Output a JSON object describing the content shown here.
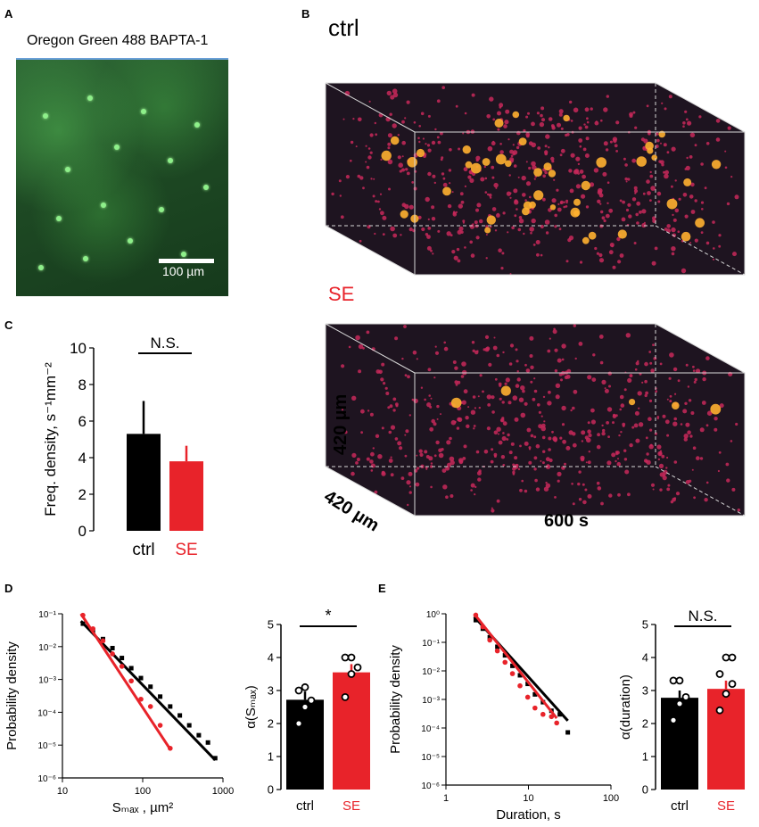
{
  "panel_labels": {
    "a": "A",
    "b": "B",
    "c": "C",
    "d": "D",
    "e": "E"
  },
  "panel_a": {
    "title": "Oregon Green 488 BAPTA-1",
    "scale_label": "100 µm"
  },
  "panel_b": {
    "ctrl_label": "ctrl",
    "se_label": "SE",
    "axis_y": "420 µm",
    "axis_depth": "420 µm",
    "axis_time": "600 s"
  },
  "colors": {
    "ctrl": "#000000",
    "se": "#e8232a",
    "dot": "#c8285a",
    "hot": "#ffb030",
    "cube_bg": "#1e1420",
    "micro": "#2a6a33"
  },
  "chart_data": [
    {
      "id": "C",
      "type": "bar",
      "categories": [
        "ctrl",
        "SE"
      ],
      "values": [
        5.3,
        3.8
      ],
      "errors": [
        1.8,
        0.85
      ],
      "ylabel": "Freq. density, s⁻¹mm⁻²",
      "ylim": [
        0,
        10
      ],
      "yticks": [
        0,
        2,
        4,
        6,
        8,
        10
      ],
      "annotation": "N.S."
    },
    {
      "id": "D-left",
      "type": "scatter",
      "xscale": "log",
      "yscale": "log",
      "xlabel": "Sₘₐₓ , µm²",
      "ylabel": "Probability density",
      "xlim": [
        10,
        1000
      ],
      "ylim": [
        1e-06,
        0.1
      ],
      "xticks": [
        "10",
        "100",
        "1000"
      ],
      "yticks": [
        "10⁻⁶",
        "10⁻⁵",
        "10⁻⁴",
        "10⁻³",
        "10⁻²",
        "10⁻¹"
      ],
      "series": [
        {
          "name": "ctrl",
          "x": [
            18,
            24,
            32,
            42,
            55,
            72,
            95,
            125,
            165,
            220,
            290,
            380,
            500,
            650,
            800
          ],
          "y": [
            0.05,
            0.03,
            0.017,
            0.009,
            0.0045,
            0.0022,
            0.0011,
            0.0006,
            0.0003,
            0.00015,
            8e-05,
            4e-05,
            2e-05,
            1.2e-05,
            4e-06
          ],
          "fit": [
            [
              17,
              0.06
            ],
            [
              800,
              3.5e-06
            ]
          ]
        },
        {
          "name": "SE",
          "x": [
            18,
            24,
            32,
            42,
            55,
            72,
            95,
            125,
            165,
            220
          ],
          "y": [
            0.09,
            0.035,
            0.015,
            0.006,
            0.0025,
            0.0009,
            0.00025,
            0.00015,
            4e-05,
            8e-06
          ],
          "fit": [
            [
              17,
              0.1
            ],
            [
              220,
              7.5e-06
            ]
          ]
        }
      ]
    },
    {
      "id": "D-right",
      "type": "bar",
      "categories": [
        "ctrl",
        "SE"
      ],
      "values": [
        2.72,
        3.55
      ],
      "errors": [
        0.25,
        0.25
      ],
      "points": [
        [
          2.0,
          2.5,
          2.7,
          3.0,
          3.1
        ],
        [
          2.8,
          3.5,
          3.7,
          4.0,
          4.0
        ]
      ],
      "ylabel": "α(Sₘₐₓ)",
      "ylim": [
        0,
        5
      ],
      "yticks": [
        0,
        1,
        2,
        3,
        4,
        5
      ],
      "annotation": "*"
    },
    {
      "id": "E-left",
      "type": "scatter",
      "xscale": "log",
      "yscale": "log",
      "xlabel": "Duration, s",
      "ylabel": "Probability density",
      "xlim": [
        1,
        100
      ],
      "ylim": [
        1e-06,
        1
      ],
      "xticks": [
        "1",
        "10",
        "100"
      ],
      "yticks": [
        "10⁻⁶",
        "10⁻⁵",
        "10⁻⁴",
        "10⁻³",
        "10⁻²",
        "10⁻¹",
        "10⁰"
      ],
      "series": [
        {
          "name": "ctrl",
          "x": [
            2.3,
            2.8,
            3.4,
            4.2,
            5.2,
            6.4,
            7.9,
            9.8,
            12,
            15,
            19,
            24,
            30
          ],
          "y": [
            0.6,
            0.3,
            0.15,
            0.07,
            0.035,
            0.015,
            0.007,
            0.0035,
            0.0015,
            0.0008,
            0.0004,
            0.0003,
            7e-05
          ],
          "fit": [
            [
              2.2,
              0.8
            ],
            [
              30,
              0.00018
            ]
          ]
        },
        {
          "name": "SE",
          "x": [
            2.3,
            2.8,
            3.4,
            4.2,
            5.2,
            6.4,
            7.9,
            9.8,
            12,
            15,
            19,
            22
          ],
          "y": [
            0.9,
            0.35,
            0.12,
            0.05,
            0.02,
            0.008,
            0.003,
            0.0012,
            0.0005,
            0.0003,
            0.00025,
            0.00015
          ],
          "fit": [
            [
              2.2,
              1.0
            ],
            [
              22,
              0.00022
            ]
          ]
        }
      ]
    },
    {
      "id": "E-right",
      "type": "bar",
      "categories": [
        "ctrl",
        "SE"
      ],
      "values": [
        2.78,
        3.05
      ],
      "errors": [
        0.22,
        0.25
      ],
      "points": [
        [
          2.1,
          2.6,
          2.8,
          3.3,
          3.3
        ],
        [
          2.4,
          2.9,
          3.2,
          3.5,
          4.0,
          4.0
        ]
      ],
      "ylabel": "α(duration)",
      "ylim": [
        0,
        5
      ],
      "yticks": [
        0,
        1,
        2,
        3,
        4,
        5
      ],
      "annotation": "N.S."
    }
  ]
}
